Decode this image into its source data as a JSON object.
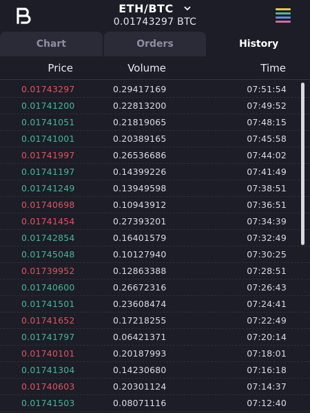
{
  "header": {
    "logo_icon": "brand-logo-icon",
    "pair": "ETH/BTC",
    "price": "0.01743297 BTC",
    "menu_icon": "hamburger-menu-icon",
    "menu_colors": [
      "#e8c84a",
      "#4fb8a6",
      "#5a8fe0",
      "#d36aa2"
    ]
  },
  "tabs": [
    {
      "label": "Chart",
      "active": false
    },
    {
      "label": "Orders",
      "active": false
    },
    {
      "label": "History",
      "active": true
    }
  ],
  "columns": {
    "price": "Price",
    "volume": "Volume",
    "time": "Time"
  },
  "colors": {
    "sell": "#e0545f",
    "buy": "#45b6a0"
  },
  "trades": [
    {
      "price": "0.01743297",
      "volume": "0.29417169",
      "time": "07:51:54",
      "side": "sell"
    },
    {
      "price": "0.01741200",
      "volume": "0.22813200",
      "time": "07:49:52",
      "side": "buy"
    },
    {
      "price": "0.01741051",
      "volume": "0.21819065",
      "time": "07:48:15",
      "side": "buy"
    },
    {
      "price": "0.01741001",
      "volume": "0.20389165",
      "time": "07:45:58",
      "side": "buy"
    },
    {
      "price": "0.01741997",
      "volume": "0.26536686",
      "time": "07:44:02",
      "side": "sell"
    },
    {
      "price": "0.01741197",
      "volume": "0.14399226",
      "time": "07:41:49",
      "side": "buy"
    },
    {
      "price": "0.01741249",
      "volume": "0.13949598",
      "time": "07:38:51",
      "side": "buy"
    },
    {
      "price": "0.01740698",
      "volume": "0.10943912",
      "time": "07:36:51",
      "side": "sell"
    },
    {
      "price": "0.01741454",
      "volume": "0.27393201",
      "time": "07:34:39",
      "side": "sell"
    },
    {
      "price": "0.01742854",
      "volume": "0.16401579",
      "time": "07:32:49",
      "side": "buy"
    },
    {
      "price": "0.01745048",
      "volume": "0.10127940",
      "time": "07:30:25",
      "side": "buy"
    },
    {
      "price": "0.01739952",
      "volume": "0.12863388",
      "time": "07:28:51",
      "side": "sell"
    },
    {
      "price": "0.01740600",
      "volume": "0.26672316",
      "time": "07:26:43",
      "side": "buy"
    },
    {
      "price": "0.01741501",
      "volume": "0.23608474",
      "time": "07:24:41",
      "side": "buy"
    },
    {
      "price": "0.01741652",
      "volume": "0.17218255",
      "time": "07:22:49",
      "side": "sell"
    },
    {
      "price": "0.01741797",
      "volume": "0.06421371",
      "time": "07:20:14",
      "side": "buy"
    },
    {
      "price": "0.01740101",
      "volume": "0.20187993",
      "time": "07:18:01",
      "side": "sell"
    },
    {
      "price": "0.01741304",
      "volume": "0.14230680",
      "time": "07:16:18",
      "side": "buy"
    },
    {
      "price": "0.01740603",
      "volume": "0.20301124",
      "time": "07:14:37",
      "side": "sell"
    },
    {
      "price": "0.01741503",
      "volume": "0.08071116",
      "time": "07:12:40",
      "side": "buy"
    }
  ]
}
